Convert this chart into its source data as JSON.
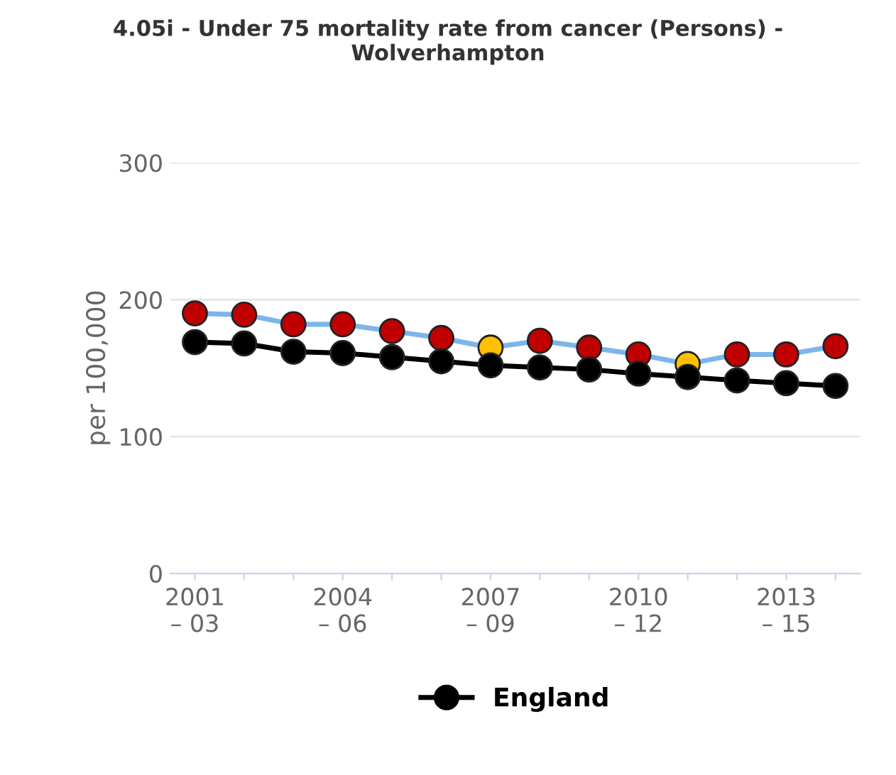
{
  "chart_data": {
    "type": "line",
    "title": "4.05i - Under 75 mortality rate from cancer (Persons) -\nWolverhampton",
    "ylabel": "per 100,000",
    "categories": [
      "2001\n– 03",
      null,
      null,
      "2004\n– 06",
      null,
      null,
      "2007\n– 09",
      null,
      null,
      "2010\n– 12",
      null,
      null,
      "2013\n– 15",
      null
    ],
    "series": [
      {
        "color": "#7cb5ec",
        "colors": [
          "#c00000",
          "#c00000",
          "#c00000",
          "#c00000",
          "#c00000",
          "#c00000",
          "#ffc000",
          "#c00000",
          "#c00000",
          "#c00000",
          "#ffc000",
          "#c00000",
          "#c00000",
          "#c00000"
        ],
        "values": [
          190,
          189,
          182,
          182,
          177,
          172,
          165,
          170,
          165,
          160,
          153,
          160,
          160,
          166
        ]
      },
      {
        "name": "England",
        "color": "#000000",
        "values": [
          169,
          168,
          162,
          161,
          158,
          155,
          152,
          150.5,
          149,
          146,
          143.5,
          141,
          139,
          137
        ]
      }
    ],
    "ylim": [
      0,
      300
    ],
    "yticks": [
      0,
      100,
      200,
      300
    ],
    "grid": "y",
    "legend": "bottom",
    "marker": "circle",
    "line_style": "solid"
  }
}
